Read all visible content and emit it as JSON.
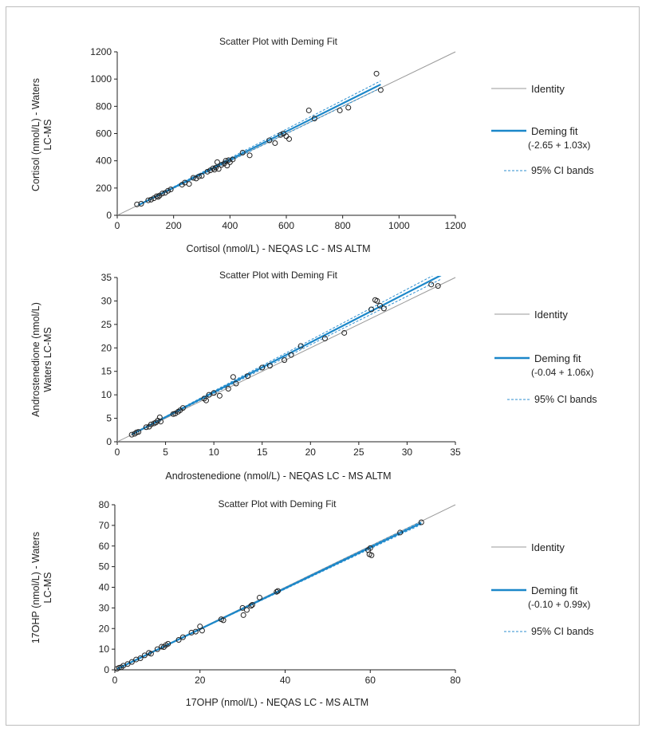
{
  "colors": {
    "identity": "#9a9a9a",
    "fit": "#1b87c9",
    "ci": "#2d8fcf",
    "points": "#222222",
    "axis": "#222222"
  },
  "chart_data": [
    {
      "type": "scatter",
      "title": "Scatter Plot with Deming Fit",
      "xlabel": "Cortisol (nmol/L)  - NEQAS LC - MS ALTM",
      "ylabel_lines": [
        "Cortisol (nmol/L) - Waters",
        "LC-MS"
      ],
      "xlim": [
        0,
        1200
      ],
      "ylim": [
        0,
        1200
      ],
      "xticks": [
        0,
        200,
        400,
        600,
        800,
        1000,
        1200
      ],
      "yticks": [
        0,
        200,
        400,
        600,
        800,
        1000,
        1200
      ],
      "fit": {
        "intercept": -2.65,
        "slope": 1.03,
        "x_range": [
          75,
          935
        ]
      },
      "ci": {
        "upper_slope": 1.058,
        "lower_slope": 1.002
      },
      "legend": {
        "identity": "Identity",
        "fit_lines": [
          "Deming fit",
          "(-2.65 + 1.03x)"
        ],
        "ci": "95% CI bands"
      },
      "points": [
        [
          70,
          80
        ],
        [
          85,
          85
        ],
        [
          110,
          110
        ],
        [
          120,
          115
        ],
        [
          130,
          125
        ],
        [
          140,
          140
        ],
        [
          145,
          135
        ],
        [
          150,
          145
        ],
        [
          160,
          160
        ],
        [
          170,
          165
        ],
        [
          180,
          180
        ],
        [
          190,
          190
        ],
        [
          230,
          225
        ],
        [
          240,
          240
        ],
        [
          255,
          230
        ],
        [
          270,
          275
        ],
        [
          280,
          270
        ],
        [
          290,
          285
        ],
        [
          300,
          290
        ],
        [
          320,
          320
        ],
        [
          330,
          330
        ],
        [
          340,
          345
        ],
        [
          345,
          335
        ],
        [
          350,
          350
        ],
        [
          355,
          390
        ],
        [
          360,
          340
        ],
        [
          370,
          370
        ],
        [
          380,
          380
        ],
        [
          385,
          400
        ],
        [
          390,
          365
        ],
        [
          395,
          405
        ],
        [
          400,
          390
        ],
        [
          410,
          410
        ],
        [
          445,
          460
        ],
        [
          470,
          440
        ],
        [
          540,
          550
        ],
        [
          560,
          530
        ],
        [
          580,
          590
        ],
        [
          590,
          600
        ],
        [
          600,
          580
        ],
        [
          610,
          560
        ],
        [
          680,
          770
        ],
        [
          700,
          710
        ],
        [
          790,
          770
        ],
        [
          820,
          790
        ],
        [
          920,
          1040
        ],
        [
          935,
          920
        ]
      ]
    },
    {
      "type": "scatter",
      "title": "Scatter Plot with Deming Fit",
      "xlabel": "Androstenedione (nmol/L)  - NEQAS LC - MS ALTM",
      "ylabel_lines": [
        "Androstenedione (nmol/L)",
        "Waters LC-MS"
      ],
      "xlim": [
        0,
        35
      ],
      "ylim": [
        0,
        35
      ],
      "xticks": [
        0,
        5,
        10,
        15,
        20,
        25,
        30,
        35
      ],
      "yticks": [
        0,
        5,
        10,
        15,
        20,
        25,
        30,
        35
      ],
      "fit": {
        "intercept": -0.04,
        "slope": 1.06,
        "x_range": [
          1.5,
          33.5
        ]
      },
      "ci": {
        "upper_slope": 1.085,
        "lower_slope": 1.035
      },
      "legend": {
        "identity": "Identity",
        "fit_lines": [
          "Deming fit",
          "(-0.04 + 1.06x)"
        ],
        "ci": "95% CI bands"
      },
      "points": [
        [
          1.5,
          1.5
        ],
        [
          1.8,
          1.7
        ],
        [
          2.0,
          2.0
        ],
        [
          2.2,
          2.1
        ],
        [
          3.0,
          3.1
        ],
        [
          3.3,
          3.2
        ],
        [
          3.5,
          3.7
        ],
        [
          3.8,
          3.9
        ],
        [
          4.0,
          4.1
        ],
        [
          4.2,
          4.5
        ],
        [
          4.4,
          5.2
        ],
        [
          4.5,
          4.3
        ],
        [
          5.8,
          5.9
        ],
        [
          6.0,
          6.0
        ],
        [
          6.3,
          6.4
        ],
        [
          6.5,
          6.7
        ],
        [
          6.8,
          7.2
        ],
        [
          9.0,
          9.2
        ],
        [
          9.2,
          8.8
        ],
        [
          9.5,
          10.0
        ],
        [
          10.0,
          10.4
        ],
        [
          10.6,
          9.8
        ],
        [
          11.5,
          11.3
        ],
        [
          12.0,
          13.8
        ],
        [
          12.3,
          12.4
        ],
        [
          13.5,
          14.0
        ],
        [
          15.0,
          15.8
        ],
        [
          15.8,
          16.2
        ],
        [
          17.3,
          17.4
        ],
        [
          18.0,
          18.5
        ],
        [
          19.0,
          20.4
        ],
        [
          21.5,
          22.0
        ],
        [
          23.5,
          23.2
        ],
        [
          26.3,
          28.2
        ],
        [
          26.7,
          30.2
        ],
        [
          26.9,
          30.0
        ],
        [
          27.2,
          29.0
        ],
        [
          27.6,
          28.4
        ],
        [
          32.5,
          33.5
        ],
        [
          33.2,
          33.2
        ]
      ]
    },
    {
      "type": "scatter",
      "title": "Scatter Plot with Deming Fit",
      "xlabel": "17OHP (nmol/L)  - NEQAS LC - MS ALTM",
      "ylabel_lines": [
        "17OHP (nmol/L) - Waters",
        "LC-MS"
      ],
      "xlim": [
        0,
        80
      ],
      "ylim": [
        0,
        80
      ],
      "xticks": [
        0,
        20,
        40,
        60,
        80
      ],
      "yticks": [
        0,
        10,
        20,
        30,
        40,
        50,
        60,
        70,
        80
      ],
      "fit": {
        "intercept": -0.1,
        "slope": 0.99,
        "x_range": [
          0.5,
          72
        ]
      },
      "ci": {
        "upper_slope": 1.0,
        "lower_slope": 0.98
      },
      "legend": {
        "identity": "Identity",
        "fit_lines": [
          "Deming fit",
          "(-0.10 + 0.99x)"
        ],
        "ci": "95% CI bands"
      },
      "points": [
        [
          0.5,
          0.5
        ],
        [
          1.0,
          1.0
        ],
        [
          1.5,
          1.2
        ],
        [
          2.0,
          2.0
        ],
        [
          3.0,
          2.8
        ],
        [
          4.0,
          3.8
        ],
        [
          5.0,
          5.0
        ],
        [
          6.0,
          5.6
        ],
        [
          7.0,
          7.0
        ],
        [
          8.0,
          8.2
        ],
        [
          8.5,
          7.8
        ],
        [
          10.0,
          10.0
        ],
        [
          11.0,
          11.2
        ],
        [
          11.5,
          11.0
        ],
        [
          12.0,
          12.0
        ],
        [
          12.5,
          12.6
        ],
        [
          15.0,
          14.5
        ],
        [
          16.0,
          15.8
        ],
        [
          18.0,
          18.0
        ],
        [
          19.0,
          18.5
        ],
        [
          20.0,
          21.0
        ],
        [
          20.5,
          19.0
        ],
        [
          25.0,
          24.5
        ],
        [
          25.5,
          24.0
        ],
        [
          30.0,
          30.0
        ],
        [
          30.2,
          26.5
        ],
        [
          31.0,
          29.0
        ],
        [
          32.0,
          31.0
        ],
        [
          32.3,
          31.5
        ],
        [
          34.0,
          35.0
        ],
        [
          38.0,
          37.8
        ],
        [
          38.3,
          38.2
        ],
        [
          59.5,
          58.0
        ],
        [
          59.8,
          56.0
        ],
        [
          60.0,
          59.0
        ],
        [
          60.3,
          55.5
        ],
        [
          67.0,
          66.5
        ],
        [
          72.0,
          71.5
        ]
      ]
    }
  ]
}
